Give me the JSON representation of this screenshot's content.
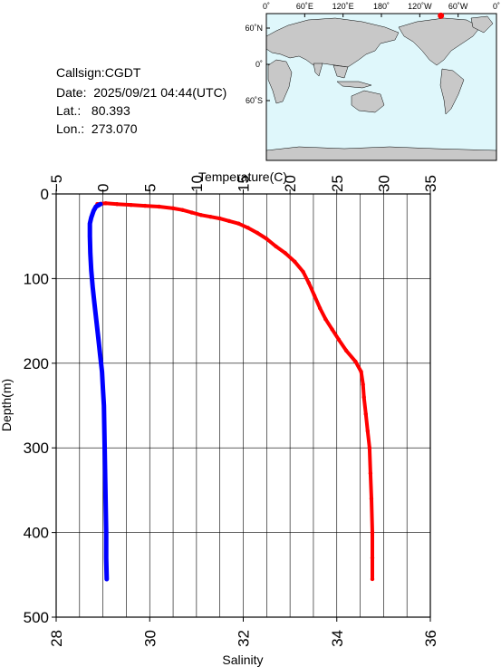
{
  "station": {
    "callsign_label": "Callsign:",
    "callsign": "CGDT",
    "date_label": "Date:",
    "date": "2025/09/21 04:44(UTC)",
    "lat_label": "Lat.:",
    "lat": "80.393",
    "lon_label": "Lon.:",
    "lon": "273.070"
  },
  "map": {
    "lon_labels": [
      "0˚",
      "60˚E",
      "120˚E",
      "180˚",
      "120˚W",
      "60˚W",
      "0˚"
    ],
    "lat_labels": [
      "60˚N",
      "0˚",
      "60˚S"
    ],
    "ocean_color": "#dff7fb",
    "land_color": "#c8c8c8",
    "marker_color": "#ff0000",
    "marker_lon": 273.07,
    "marker_lat": 80.393
  },
  "chart_data": {
    "type": "line",
    "ylabel": "Depth(m)",
    "ylim": [
      500,
      0
    ],
    "yticks": [
      "0",
      "100",
      "200",
      "300",
      "400",
      "500"
    ],
    "top_axis": {
      "label": "Temperature(C)",
      "lim": [
        -5,
        35
      ],
      "ticks": [
        "−5",
        "0",
        "5",
        "10",
        "15",
        "20",
        "25",
        "30",
        "35"
      ]
    },
    "bottom_axis": {
      "label": "Salinity",
      "lim": [
        28,
        36
      ],
      "ticks": [
        "28",
        "30",
        "32",
        "34",
        "36"
      ]
    },
    "grid": true,
    "series": [
      {
        "axis": "top",
        "color": "#ff0000",
        "points": [
          [
            -0.6,
            12
          ],
          [
            0.3,
            11
          ],
          [
            1.5,
            12
          ],
          [
            3,
            13
          ],
          [
            4.5,
            14
          ],
          [
            6,
            15
          ],
          [
            7.5,
            17
          ],
          [
            8.5,
            19
          ],
          [
            9.5,
            22
          ],
          [
            10.5,
            25
          ],
          [
            11.5,
            27
          ],
          [
            12.5,
            29
          ],
          [
            13.5,
            32
          ],
          [
            14.5,
            35
          ],
          [
            15.5,
            40
          ],
          [
            16.5,
            46
          ],
          [
            17.5,
            53
          ],
          [
            18.5,
            62
          ],
          [
            19.5,
            70
          ],
          [
            20.5,
            80
          ],
          [
            21.4,
            92
          ],
          [
            22,
            105
          ],
          [
            22.6,
            120
          ],
          [
            23.2,
            135
          ],
          [
            23.8,
            148
          ],
          [
            24.5,
            160
          ],
          [
            25.2,
            172
          ],
          [
            26,
            185
          ],
          [
            27,
            198
          ],
          [
            27.6,
            210
          ],
          [
            27.8,
            225
          ],
          [
            27.9,
            240
          ],
          [
            28.1,
            260
          ],
          [
            28.3,
            280
          ],
          [
            28.5,
            300
          ],
          [
            28.6,
            330
          ],
          [
            28.7,
            360
          ],
          [
            28.8,
            400
          ],
          [
            28.8,
            430
          ],
          [
            28.8,
            455
          ]
        ]
      },
      {
        "axis": "bottom",
        "color": "#0000ff",
        "points": [
          [
            28.95,
            12
          ],
          [
            28.85,
            15
          ],
          [
            28.8,
            20
          ],
          [
            28.75,
            28
          ],
          [
            28.72,
            35
          ],
          [
            28.72,
            50
          ],
          [
            28.73,
            70
          ],
          [
            28.75,
            90
          ],
          [
            28.78,
            110
          ],
          [
            28.82,
            130
          ],
          [
            28.86,
            150
          ],
          [
            28.9,
            170
          ],
          [
            28.94,
            190
          ],
          [
            28.98,
            210
          ],
          [
            29.0,
            230
          ],
          [
            29.02,
            250
          ],
          [
            29.03,
            280
          ],
          [
            29.04,
            310
          ],
          [
            29.05,
            340
          ],
          [
            29.06,
            370
          ],
          [
            29.07,
            400
          ],
          [
            29.07,
            430
          ],
          [
            29.08,
            455
          ]
        ]
      }
    ]
  }
}
